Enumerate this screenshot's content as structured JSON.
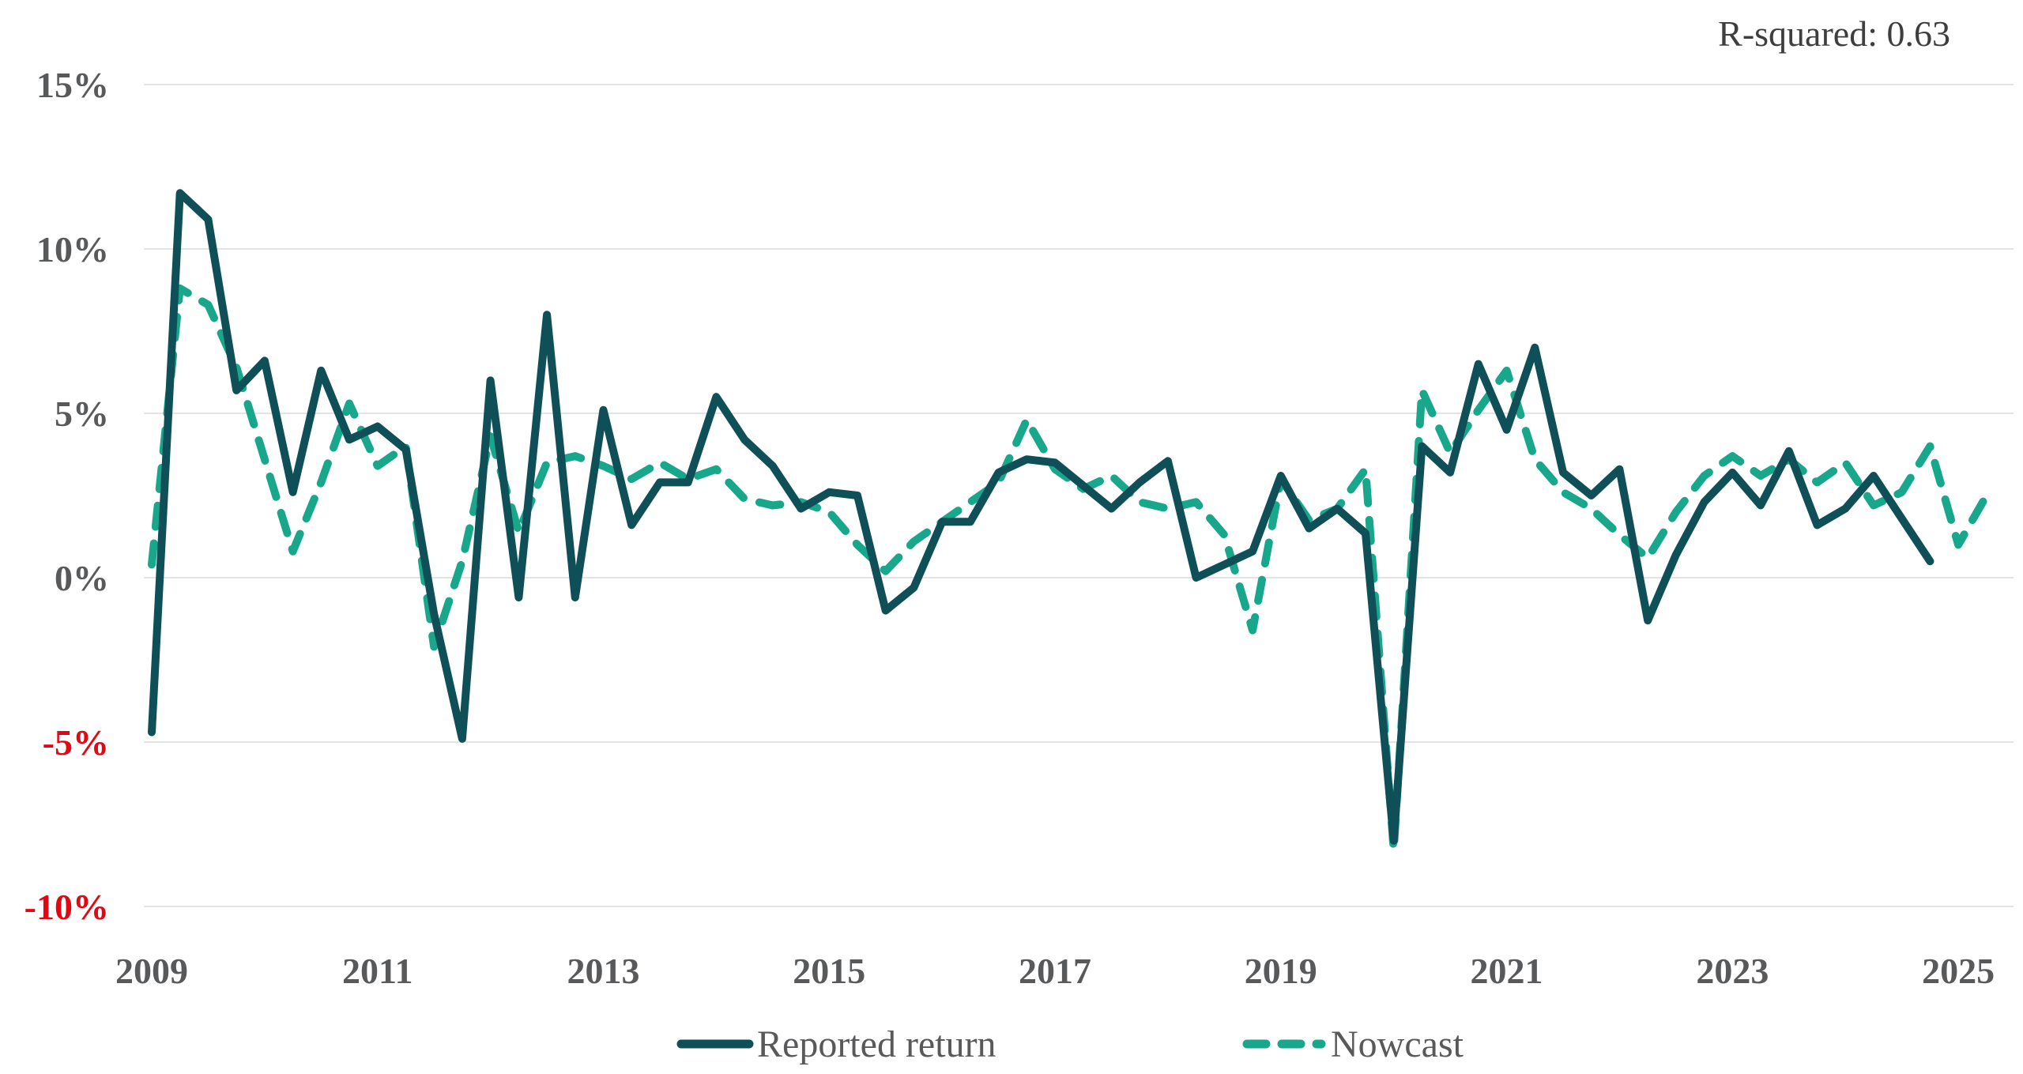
{
  "annotation": {
    "r_squared_label": "R-squared: 0.63"
  },
  "legend": {
    "items": [
      {
        "label": "Reported return",
        "style": "solid",
        "color": "#0f4f58"
      },
      {
        "label": "Nowcast",
        "style": "dashed",
        "color": "#19a78c"
      }
    ]
  },
  "chart_data": {
    "type": "line",
    "title": "",
    "xlabel": "",
    "ylabel": "",
    "frequency": "quarterly",
    "grid": "horizontal",
    "legend_position": "bottom-center",
    "r_squared": 0.63,
    "xlim_years": [
      2009,
      2025.5
    ],
    "ylim": [
      -10.5,
      16
    ],
    "x_ticks": [
      {
        "label": "2009",
        "year": 2009
      },
      {
        "label": "2011",
        "year": 2011
      },
      {
        "label": "2013",
        "year": 2013
      },
      {
        "label": "2015",
        "year": 2015
      },
      {
        "label": "2017",
        "year": 2017
      },
      {
        "label": "2019",
        "year": 2019
      },
      {
        "label": "2021",
        "year": 2021
      },
      {
        "label": "2023",
        "year": 2023
      },
      {
        "label": "2025",
        "year": 2025
      }
    ],
    "y_ticks": [
      {
        "label": "15%",
        "value": 15
      },
      {
        "label": "10%",
        "value": 10
      },
      {
        "label": "5%",
        "value": 5
      },
      {
        "label": "0%",
        "value": 0
      },
      {
        "label": "-5%",
        "value": -5
      },
      {
        "label": "-10%",
        "value": -10
      }
    ],
    "series": [
      {
        "name": "Reported return",
        "color": "#0f4f58",
        "line_style": "solid",
        "start_quarter": "2009Q1",
        "end_quarter": "2024Q4",
        "values": [
          -4.7,
          11.7,
          10.9,
          5.7,
          6.6,
          2.6,
          6.3,
          4.2,
          4.6,
          3.9,
          -1.1,
          -4.9,
          6.0,
          -0.6,
          8.0,
          -0.6,
          5.1,
          1.6,
          2.9,
          2.9,
          5.5,
          4.2,
          3.4,
          2.1,
          2.6,
          2.5,
          -1.0,
          -0.3,
          1.7,
          1.7,
          3.2,
          3.6,
          3.5,
          2.8,
          2.1,
          2.9,
          3.55,
          0.0,
          0.4,
          0.8,
          3.1,
          1.5,
          2.1,
          1.35,
          -8.0,
          4.0,
          3.2,
          6.5,
          4.5,
          7.0,
          3.2,
          2.5,
          3.3,
          -1.3,
          0.7,
          2.3,
          3.2,
          2.2,
          3.85,
          1.6,
          2.1,
          3.1,
          1.8,
          0.5
        ]
      },
      {
        "name": "Nowcast",
        "color": "#19a78c",
        "line_style": "dashed",
        "start_quarter": "2009Q1",
        "end_quarter": "2025Q2",
        "values": [
          0.4,
          8.8,
          8.3,
          6.4,
          3.6,
          0.8,
          2.9,
          5.3,
          3.4,
          4.0,
          -2.1,
          0.5,
          4.3,
          1.4,
          3.5,
          3.7,
          3.4,
          3.0,
          3.5,
          3.0,
          3.3,
          2.4,
          2.2,
          2.3,
          2.0,
          1.0,
          0.2,
          1.1,
          1.7,
          2.3,
          2.9,
          4.8,
          3.3,
          2.7,
          3.1,
          2.3,
          2.1,
          2.3,
          1.3,
          -1.6,
          3.0,
          1.75,
          2.1,
          3.3,
          -8.3,
          5.7,
          3.8,
          5.1,
          6.3,
          3.6,
          2.6,
          2.1,
          1.3,
          0.6,
          2.0,
          3.1,
          3.7,
          3.1,
          3.6,
          2.9,
          3.5,
          2.2,
          2.6,
          4.0,
          1.0,
          2.5
        ]
      }
    ],
    "colors": {
      "tick": "#58595b",
      "negative_tick": "#e30613",
      "grid": "#e3e3e3",
      "annotation": "#3d3e40",
      "background": "#ffffff"
    }
  }
}
